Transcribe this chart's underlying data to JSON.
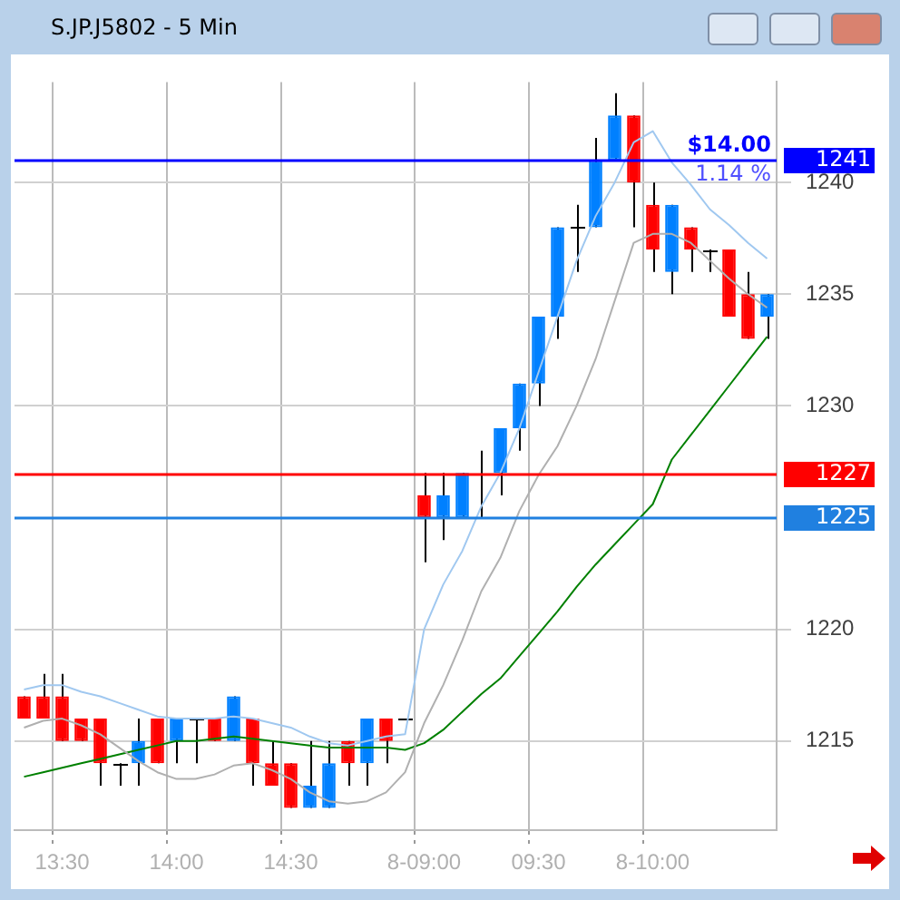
{
  "chart_data": {
    "type": "candlestick",
    "title": "S.JP.J5802 - 5 Min",
    "categories": [
      null,
      null,
      "13:30",
      null,
      null,
      null,
      null,
      null,
      "14:00",
      null,
      null,
      null,
      null,
      null,
      "14:30",
      null,
      null,
      null,
      null,
      null,
      null,
      "8-09:00",
      null,
      null,
      null,
      null,
      null,
      "09:30",
      null,
      null,
      null,
      null,
      null,
      "8-10:00",
      null,
      null,
      null,
      null,
      null,
      null
    ],
    "ohlc": [
      [
        1217,
        1217,
        1216,
        1216
      ],
      [
        1217,
        1218,
        1216,
        1216
      ],
      [
        1217,
        1218,
        1215,
        1215
      ],
      [
        1216,
        1216,
        1215,
        1215
      ],
      [
        1216,
        1216,
        1213,
        1214
      ],
      [
        1214,
        1214,
        1213,
        1214
      ],
      [
        1214,
        1216,
        1213,
        1215
      ],
      [
        1216,
        1216,
        1214,
        1214
      ],
      [
        1215,
        1216,
        1214,
        1216
      ],
      [
        1216,
        1216,
        1214,
        1216
      ],
      [
        1216,
        1216,
        1215,
        1215
      ],
      [
        1215,
        1217,
        1215,
        1217
      ],
      [
        1216,
        1216,
        1213,
        1214
      ],
      [
        1214,
        1215,
        1213,
        1213
      ],
      [
        1214,
        1214,
        1212,
        1212
      ],
      [
        1212,
        1215,
        1212,
        1213
      ],
      [
        1212,
        1215,
        1212,
        1214
      ],
      [
        1215,
        1215,
        1213,
        1214
      ],
      [
        1214,
        1216,
        1213,
        1216
      ],
      [
        1216,
        1216,
        1214,
        1215
      ],
      [
        1216,
        1216,
        1216,
        1216
      ],
      [
        1226,
        1227,
        1223,
        1225
      ],
      [
        1225,
        1227,
        1224,
        1226
      ],
      [
        1225,
        1227,
        1225,
        1227
      ],
      [
        1227,
        1228,
        1225,
        1227
      ],
      [
        1227,
        1229,
        1226,
        1229
      ],
      [
        1229,
        1231,
        1228,
        1231
      ],
      [
        1231,
        1234,
        1230,
        1234
      ],
      [
        1234,
        1238,
        1233,
        1238
      ],
      [
        1238,
        1239,
        1236,
        1238
      ],
      [
        1238,
        1242,
        1238,
        1241
      ],
      [
        1241,
        1244,
        1241,
        1243
      ],
      [
        1243,
        1243,
        1238,
        1240
      ],
      [
        1239,
        1240,
        1236,
        1237
      ],
      [
        1236,
        1239,
        1235,
        1239
      ],
      [
        1238,
        1238,
        1236,
        1237
      ],
      [
        1237,
        1237,
        1236,
        1237
      ],
      [
        1237,
        1237,
        1234,
        1234
      ],
      [
        1235,
        1236,
        1233,
        1233
      ],
      [
        1234,
        1235,
        1233,
        1235
      ]
    ],
    "colors": [
      "#ff0000",
      "#ff0000",
      "#ff0000",
      "#ff0000",
      "#ff0000",
      "#000000",
      "#0080ff",
      "#ff0000",
      "#0080ff",
      "#000000",
      "#ff0000",
      "#0080ff",
      "#ff0000",
      "#ff0000",
      "#ff0000",
      "#0080ff",
      "#0080ff",
      "#ff0000",
      "#0080ff",
      "#ff0000",
      "#000000",
      "#ff0000",
      "#0080ff",
      "#0080ff",
      "#000000",
      "#0080ff",
      "#0080ff",
      "#0080ff",
      "#0080ff",
      "#000000",
      "#0080ff",
      "#0080ff",
      "#ff0000",
      "#ff0000",
      "#0080ff",
      "#ff0000",
      "#000000",
      "#ff0000",
      "#ff0000",
      "#0080ff"
    ],
    "series": [
      {
        "type": "line",
        "color": "#a0c8f0",
        "values": [
          1217.3,
          1217.5,
          1217.5,
          1217.2,
          1217.0,
          1216.7,
          1216.4,
          1216.1,
          1216.0,
          1216.0,
          1216.0,
          1216.1,
          1216.0,
          1215.8,
          1215.6,
          1215.2,
          1214.9,
          1214.8,
          1215.0,
          1215.2,
          1215.3,
          1220.0,
          1222.0,
          1223.5,
          1225.5,
          1227.0,
          1229.0,
          1231.5,
          1234.0,
          1236.5,
          1238.5,
          1240.0,
          1241.8,
          1242.3,
          1240.9,
          1239.9,
          1238.8,
          1238.1,
          1237.3,
          1236.6
        ]
      },
      {
        "type": "line",
        "color": "#b0b0b0",
        "values": [
          1215.6,
          1215.9,
          1216.0,
          1215.7,
          1215.3,
          1214.7,
          1214.1,
          1213.6,
          1213.3,
          1213.3,
          1213.5,
          1213.9,
          1214.0,
          1213.7,
          1213.3,
          1212.7,
          1212.3,
          1212.2,
          1212.3,
          1212.7,
          1213.6,
          1215.8,
          1217.5,
          1219.5,
          1221.7,
          1223.2,
          1225.3,
          1226.9,
          1228.2,
          1230.0,
          1232.1,
          1234.7,
          1237.3,
          1237.7,
          1237.7,
          1237.3,
          1236.5,
          1235.7,
          1235.0,
          1234.4
        ]
      },
      {
        "type": "line",
        "color": "#008000",
        "values": [
          1213.4,
          1213.6,
          1213.8,
          1214.0,
          1214.2,
          1214.4,
          1214.6,
          1214.8,
          1215.0,
          1215.0,
          1215.1,
          1215.2,
          1215.1,
          1215.0,
          1214.9,
          1214.8,
          1214.7,
          1214.7,
          1214.7,
          1214.7,
          1214.6,
          1214.9,
          1215.5,
          1216.3,
          1217.1,
          1217.8,
          1218.8,
          1219.8,
          1220.8,
          1221.9,
          1222.9,
          1223.8,
          1224.7,
          1225.6,
          1227.6,
          1228.7,
          1229.8,
          1230.9,
          1232.0,
          1233.1
        ]
      }
    ],
    "ylim": [
      1211,
      1244.5
    ],
    "yticks": [
      1215,
      1220,
      1230,
      1235,
      1240
    ],
    "grid": true,
    "ref_lines": [
      {
        "axis": "y",
        "value": 1241,
        "label": "1241",
        "color": "#0000ff"
      },
      {
        "axis": "y",
        "value": 1227,
        "label": "1227",
        "color": "#ff0000"
      },
      {
        "axis": "y",
        "value": 1225,
        "label": "1225",
        "color": "#2080e0"
      }
    ],
    "annotations": [
      {
        "text": "$14.00",
        "y": 1241
      },
      {
        "text": "1.14 %",
        "y": 1241
      }
    ]
  }
}
